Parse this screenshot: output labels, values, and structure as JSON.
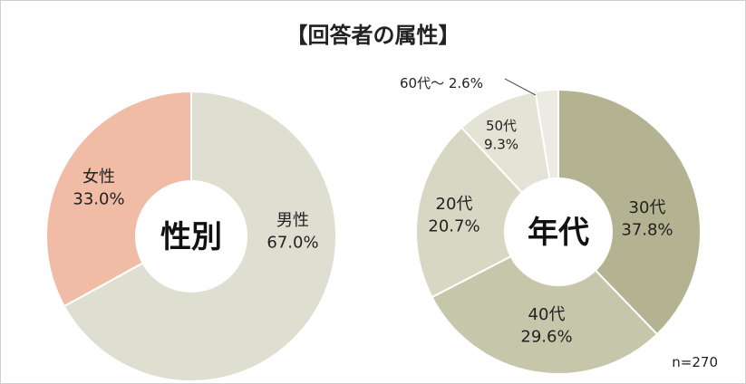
{
  "title": "【回答者の属性】",
  "sample": "n=270",
  "chart_data": [
    {
      "type": "pie",
      "center_label": "性別",
      "categories": [
        "男性",
        "女性"
      ],
      "values": [
        67.0,
        33.0
      ],
      "value_labels": [
        "67.0%",
        "33.0%"
      ],
      "colors": [
        "#dedfd1",
        "#f0bca6"
      ]
    },
    {
      "type": "pie",
      "center_label": "年代",
      "categories": [
        "30代",
        "40代",
        "20代",
        "50代",
        "60代～"
      ],
      "values": [
        37.8,
        29.6,
        20.7,
        9.3,
        2.6
      ],
      "value_labels": [
        "37.8%",
        "29.6%",
        "20.7%",
        "9.3%",
        "2.6%"
      ],
      "colors": [
        "#b3b391",
        "#c6c6ab",
        "#d7d7c3",
        "#e3e3d6",
        "#ebebe3"
      ]
    }
  ]
}
